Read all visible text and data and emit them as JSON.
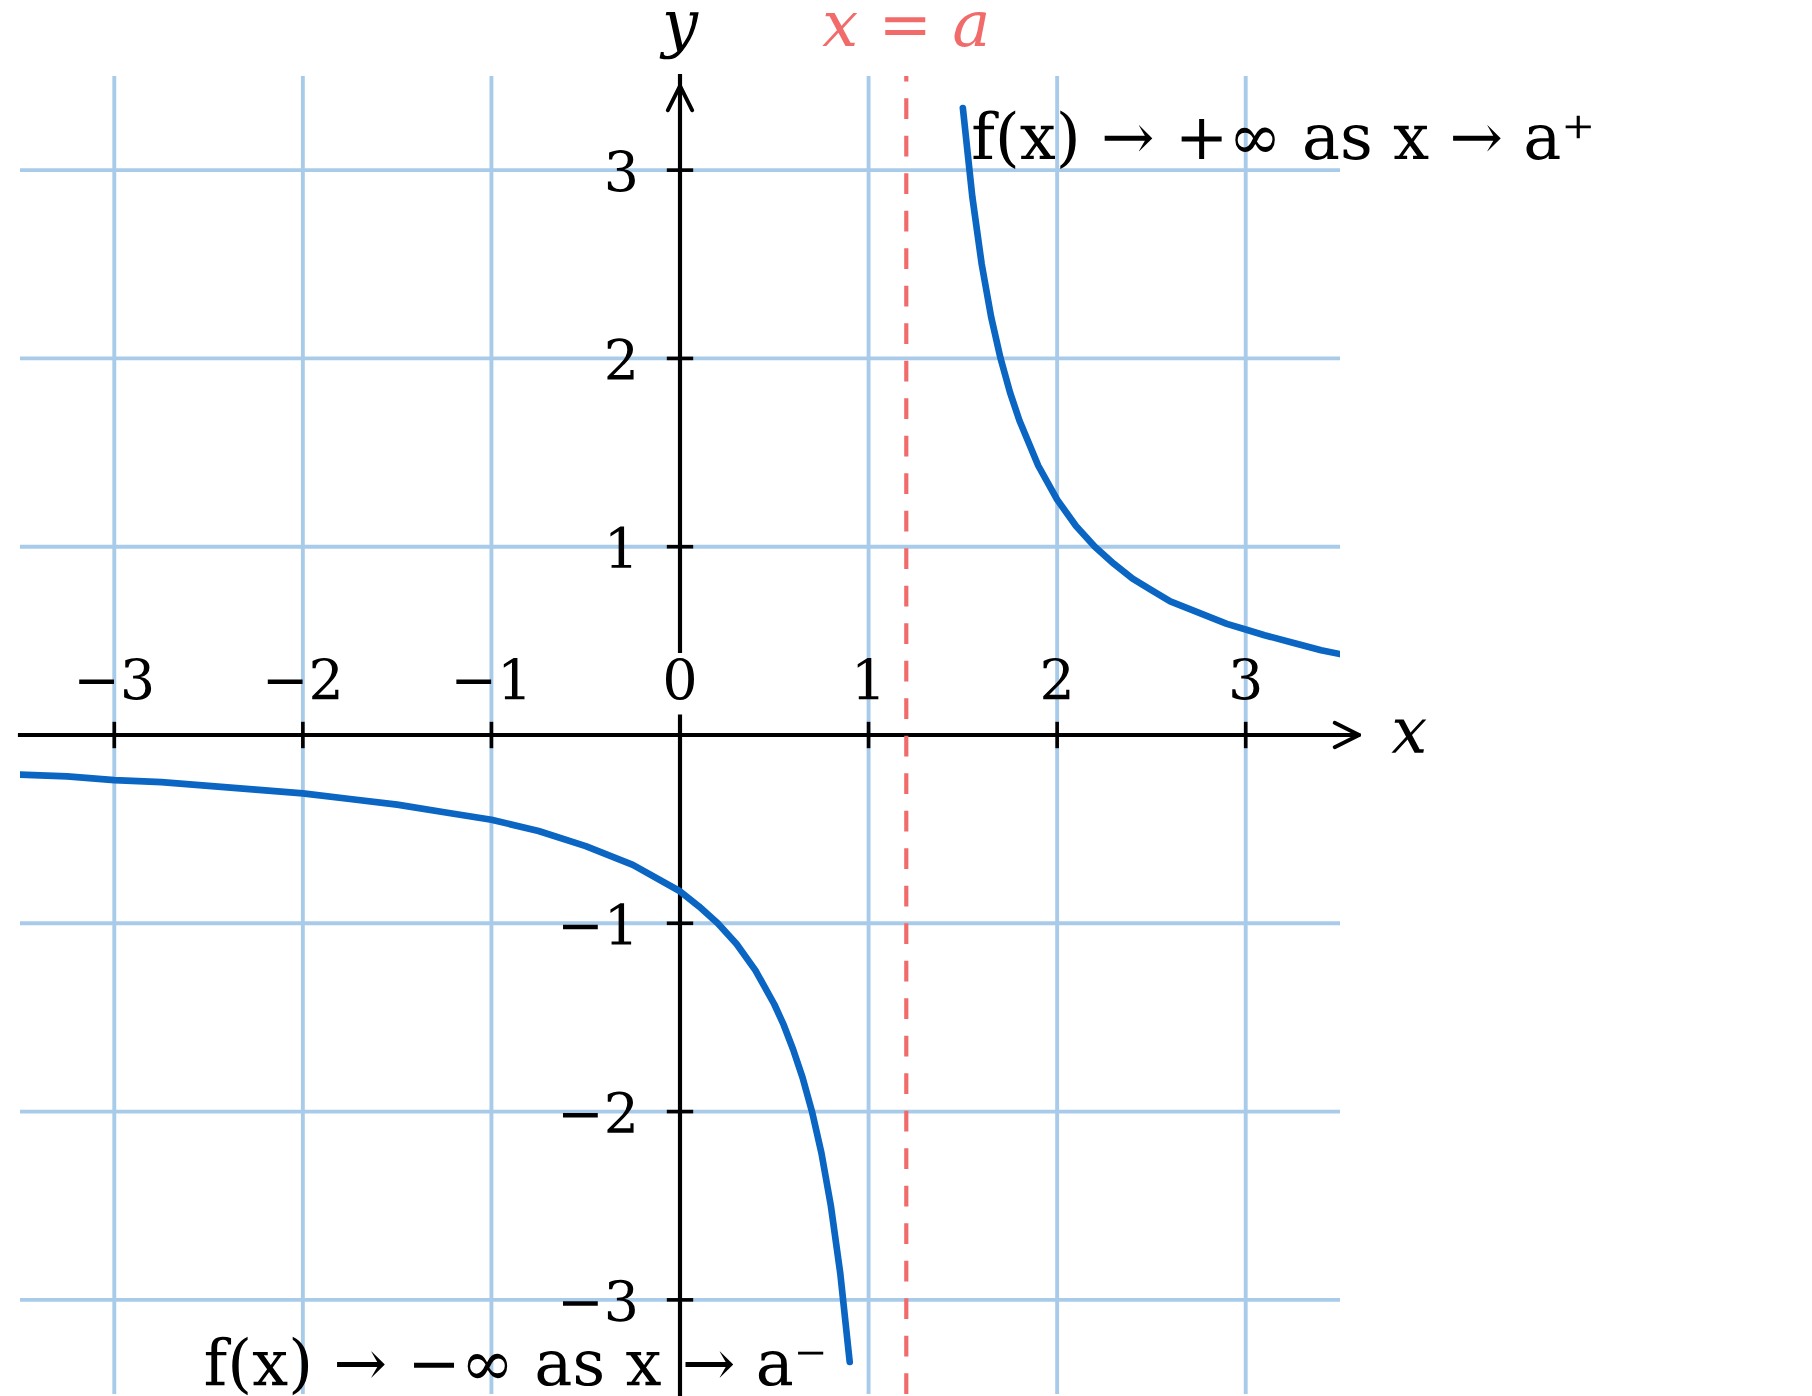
{
  "chart_data": {
    "type": "line",
    "xlabel": "x",
    "ylabel": "y",
    "xlim": [
      -3.5,
      3.5
    ],
    "ylim": [
      -3.5,
      3.5
    ],
    "xticks": [
      {
        "value": -3,
        "label": "−3"
      },
      {
        "value": -2,
        "label": "−2"
      },
      {
        "value": -1,
        "label": "−1"
      },
      0,
      1,
      2,
      3
    ],
    "yticks": [
      {
        "value": -3,
        "label": "−3"
      },
      {
        "value": -2,
        "label": "−2"
      },
      {
        "value": -1,
        "label": "−1"
      },
      1,
      2,
      3
    ],
    "grid": true,
    "series": [
      {
        "color": "#0a66c2",
        "x": [
          -3.5,
          -3.25,
          -3,
          -2.75,
          -2.5,
          -2.25,
          -2,
          -1.75,
          -1.5,
          -1.25,
          -1,
          -0.75,
          -0.5,
          -0.25,
          0,
          0.1,
          0.2,
          0.3,
          0.4,
          0.5,
          0.55,
          0.6,
          0.65,
          0.7,
          0.75,
          0.8,
          0.85,
          0.9
        ],
        "values": [
          -0.21,
          -0.22,
          -0.24,
          -0.25,
          -0.27,
          -0.29,
          -0.31,
          -0.34,
          -0.37,
          -0.41,
          -0.45,
          -0.51,
          -0.59,
          -0.69,
          -0.83,
          -0.91,
          -1.0,
          -1.11,
          -1.25,
          -1.43,
          -1.54,
          -1.67,
          -1.82,
          -2.0,
          -2.22,
          -2.5,
          -2.86,
          -3.33
        ]
      },
      {
        "color": "#0a66c2",
        "x": [
          1.5,
          1.55,
          1.6,
          1.65,
          1.7,
          1.75,
          1.8,
          1.9,
          2.0,
          2.1,
          2.2,
          2.3,
          2.4,
          2.5,
          2.6,
          2.7,
          2.8,
          2.9,
          3.0,
          3.1,
          3.25,
          3.4,
          3.5
        ],
        "values": [
          3.33,
          2.86,
          2.5,
          2.22,
          2.0,
          1.82,
          1.67,
          1.43,
          1.25,
          1.11,
          1.0,
          0.91,
          0.83,
          0.77,
          0.71,
          0.67,
          0.63,
          0.59,
          0.56,
          0.53,
          0.49,
          0.45,
          0.43
        ]
      }
    ],
    "ref_lines": [
      {
        "axis": "x",
        "value": 1.2,
        "label": "x = a",
        "color": "#f26b6b",
        "line_style": "dashed"
      }
    ],
    "annotations": [
      {
        "text": "f(x) → +∞ as x → a⁺",
        "x": 1.5,
        "y": 3.33
      },
      {
        "text": "f(x) → −∞ as x → a⁻",
        "x": 0.9,
        "y": -3.33
      }
    ]
  }
}
